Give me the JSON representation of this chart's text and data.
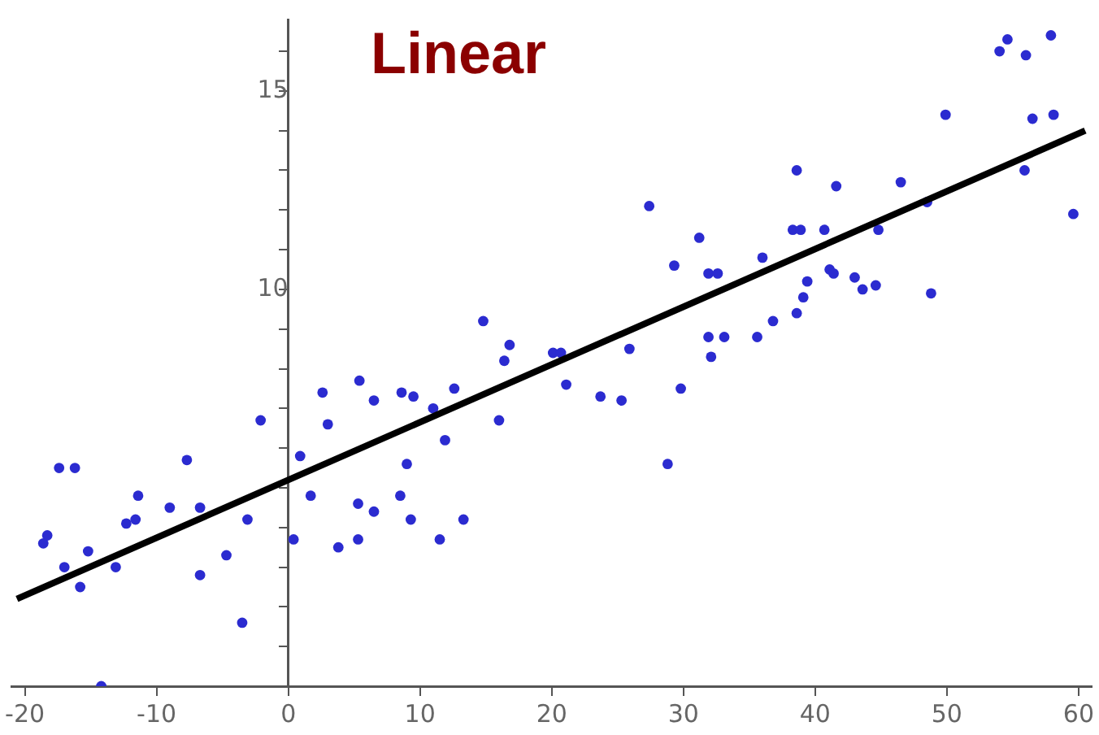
{
  "chart_data": {
    "type": "scatter",
    "title": "Linear",
    "xlim": [
      -21,
      61
    ],
    "xticks": [
      -20,
      -10,
      0,
      10,
      20,
      30,
      40,
      50,
      60
    ],
    "ylim": [
      0,
      16.8
    ],
    "yticks": [
      {
        "value": 1,
        "label": null
      },
      {
        "value": 2,
        "label": null
      },
      {
        "value": 3,
        "label": null
      },
      {
        "value": 4,
        "label": null
      },
      {
        "value": 5,
        "label": null
      },
      {
        "value": 6,
        "label": null
      },
      {
        "value": 7,
        "label": null
      },
      {
        "value": 8,
        "label": null
      },
      {
        "value": 9,
        "label": null
      },
      10,
      {
        "value": 11,
        "label": null
      },
      {
        "value": 12,
        "label": null
      },
      {
        "value": 13,
        "label": null
      },
      {
        "value": 14,
        "label": null
      },
      15,
      {
        "value": 16,
        "label": null
      }
    ],
    "grid": false,
    "legend": false,
    "series": [
      {
        "color": "#2b2bd0",
        "marker": "circle",
        "x": [
          -2.1,
          3.0,
          -17.4,
          -16.2,
          -7.7,
          0.9,
          -11.4,
          1.7,
          -9.0,
          -6.7,
          5.3,
          -12.3,
          -11.6,
          -3.1,
          -18.6,
          -18.3,
          -15.2,
          0.4,
          5.3,
          3.8,
          -17.0,
          -13.1,
          -4.7,
          -15.8,
          -6.7,
          -3.5,
          -14.2,
          14.8,
          16.8,
          16.4,
          20.1,
          20.7,
          25.9,
          2.6,
          5.4,
          6.5,
          8.6,
          9.5,
          12.6,
          11.0,
          21.1,
          23.7,
          25.3,
          16.0,
          11.9,
          9.0,
          6.5,
          8.5,
          9.3,
          13.3,
          11.5,
          38.6,
          41.6,
          46.5,
          27.4,
          31.2,
          38.3,
          38.9,
          40.7,
          44.8,
          48.5,
          29.3,
          31.9,
          32.6,
          36.0,
          41.1,
          41.4,
          39.4,
          39.1,
          43.0,
          43.6,
          44.6,
          38.6,
          36.8,
          35.6,
          31.9,
          33.1,
          32.1,
          48.8,
          29.8,
          28.8,
          54.6,
          54.0,
          56.0,
          57.9,
          49.9,
          56.5,
          58.1,
          55.9,
          59.6
        ],
        "values": [
          6.7,
          6.6,
          5.5,
          5.5,
          5.7,
          5.8,
          4.8,
          4.8,
          4.5,
          4.5,
          4.6,
          4.1,
          4.2,
          4.2,
          3.6,
          3.8,
          3.4,
          3.7,
          3.7,
          3.5,
          3.0,
          3.0,
          3.3,
          2.5,
          2.8,
          1.6,
          0.0,
          9.2,
          8.6,
          8.2,
          8.4,
          8.4,
          8.5,
          7.4,
          7.7,
          7.2,
          7.4,
          7.3,
          7.5,
          7.0,
          7.6,
          7.3,
          7.2,
          6.7,
          6.2,
          5.6,
          4.4,
          4.8,
          4.2,
          4.2,
          3.7,
          13.0,
          12.6,
          12.7,
          12.1,
          11.3,
          11.5,
          11.5,
          11.5,
          11.5,
          12.2,
          10.6,
          10.4,
          10.4,
          10.8,
          10.5,
          10.4,
          10.2,
          9.8,
          10.3,
          10.0,
          10.1,
          9.4,
          9.2,
          8.8,
          8.8,
          8.8,
          8.3,
          9.9,
          7.5,
          5.6,
          16.3,
          16.0,
          15.9,
          16.4,
          14.4,
          14.3,
          14.4,
          13.0,
          11.9
        ]
      },
      {
        "type": "line",
        "color": "#000000",
        "marker": "none",
        "x": [
          -20.6,
          60.5
        ],
        "values": [
          2.2,
          14.0
        ]
      }
    ]
  }
}
